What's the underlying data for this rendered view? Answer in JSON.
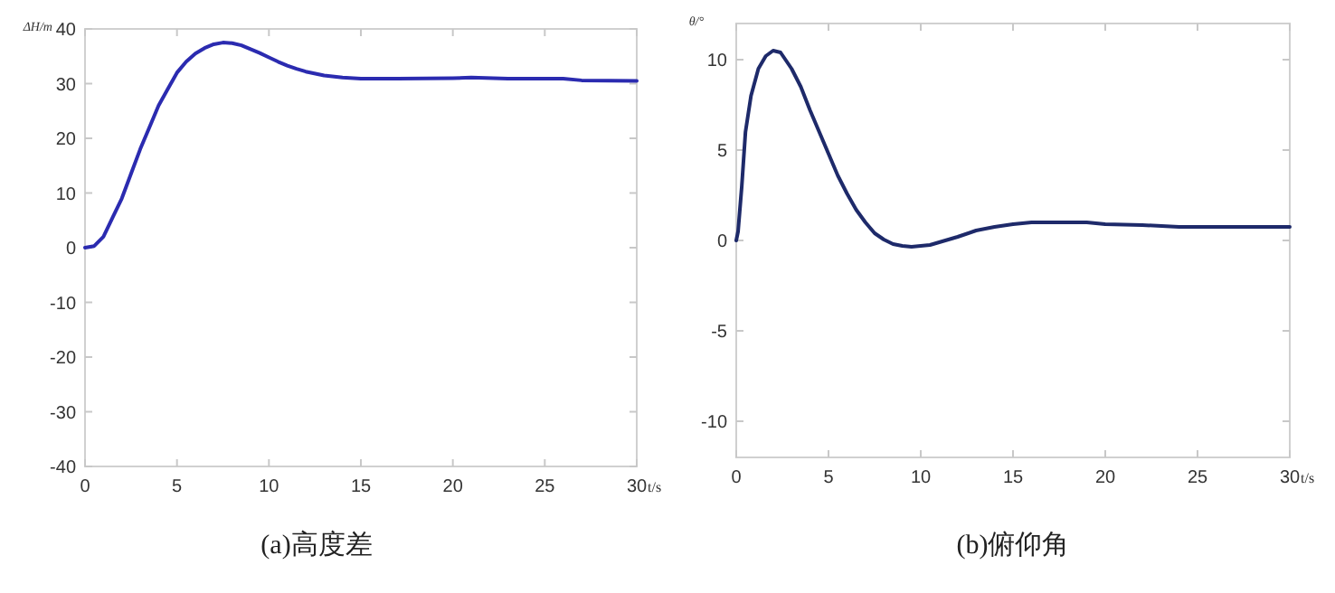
{
  "chart_data": [
    {
      "type": "line",
      "title": "(a)高度差",
      "xlabel": "t/s",
      "ylabel": "ΔH/m",
      "xlim": [
        0,
        30
      ],
      "ylim": [
        -40,
        40
      ],
      "xticks": [
        0,
        5,
        10,
        15,
        20,
        25,
        30
      ],
      "yticks": [
        -40,
        -30,
        -20,
        -10,
        0,
        10,
        20,
        30,
        40
      ],
      "grid": false,
      "marker": "none",
      "line_style": "solid",
      "x": [
        0,
        0.5,
        1,
        1.5,
        2,
        2.5,
        3,
        3.5,
        4,
        4.5,
        5,
        5.5,
        6,
        6.5,
        7,
        7.5,
        8,
        8.5,
        9,
        9.5,
        10,
        10.5,
        11,
        11.5,
        12,
        13,
        14,
        15,
        17,
        20,
        21,
        23,
        26,
        27,
        30
      ],
      "series": [
        {
          "color": "#2b2bb0",
          "values": [
            0,
            0.3,
            2,
            5.5,
            9,
            13.5,
            18,
            22,
            26,
            29,
            32,
            34,
            35.5,
            36.5,
            37.2,
            37.5,
            37.4,
            37,
            36.3,
            35.6,
            34.8,
            34,
            33.3,
            32.7,
            32.2,
            31.5,
            31.1,
            30.9,
            30.9,
            31,
            31.1,
            30.9,
            30.9,
            30.6,
            30.5
          ]
        }
      ]
    },
    {
      "type": "line",
      "title": "(b)俯仰角",
      "xlabel": "t/s",
      "ylabel": "θ/°",
      "xlim": [
        0,
        30
      ],
      "ylim": [
        -12,
        12
      ],
      "xticks": [
        0,
        5,
        10,
        15,
        20,
        25,
        30
      ],
      "yticks": [
        -10,
        -5,
        0,
        5,
        10
      ],
      "grid": false,
      "marker": "none",
      "line_style": "solid",
      "x": [
        0,
        0.1,
        0.3,
        0.5,
        0.8,
        1.2,
        1.6,
        2,
        2.4,
        3,
        3.5,
        4,
        4.5,
        5,
        5.5,
        6,
        6.5,
        7,
        7.5,
        8,
        8.5,
        9,
        9.5,
        10,
        10.5,
        11,
        12,
        13,
        14,
        15,
        16,
        18,
        19,
        20,
        22,
        24,
        30
      ],
      "series": [
        {
          "color": "#1e2a6a",
          "values": [
            0,
            0.5,
            3,
            6,
            8,
            9.5,
            10.2,
            10.5,
            10.4,
            9.5,
            8.5,
            7.2,
            6,
            4.8,
            3.6,
            2.6,
            1.7,
            1,
            0.4,
            0.05,
            -0.2,
            -0.3,
            -0.35,
            -0.3,
            -0.25,
            -0.1,
            0.2,
            0.55,
            0.75,
            0.9,
            1,
            1,
            1,
            0.9,
            0.85,
            0.75,
            0.75
          ]
        }
      ]
    }
  ]
}
